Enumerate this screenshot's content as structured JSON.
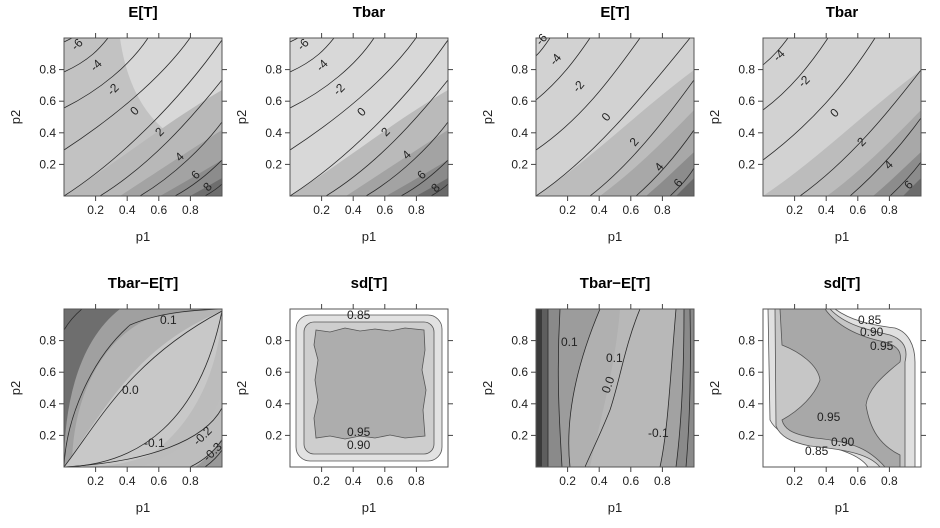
{
  "chart_data": [
    {
      "type": "contour",
      "title": "E[T]",
      "xlabel": "p1",
      "ylabel": "p2",
      "xlim": [
        0,
        1
      ],
      "ylim": [
        0,
        1
      ],
      "xticks": [
        "0.2",
        "0.4",
        "0.6",
        "0.8"
      ],
      "yticks": [
        "0.2",
        "0.4",
        "0.6",
        "0.8"
      ],
      "contour_levels": [
        "-6",
        "-4",
        "-2",
        "0",
        "2",
        "4",
        "6",
        "8"
      ]
    },
    {
      "type": "contour",
      "title": "Tbar",
      "xlabel": "p1",
      "ylabel": "p2",
      "xlim": [
        0,
        1
      ],
      "ylim": [
        0,
        1
      ],
      "xticks": [
        "0.2",
        "0.4",
        "0.6",
        "0.8"
      ],
      "yticks": [
        "0.2",
        "0.4",
        "0.6",
        "0.8"
      ],
      "contour_levels": [
        "-6",
        "-4",
        "-2",
        "0",
        "2",
        "4",
        "6",
        "8"
      ]
    },
    {
      "type": "contour",
      "title": "E[T]",
      "xlabel": "p1",
      "ylabel": "p2",
      "xlim": [
        0,
        1
      ],
      "ylim": [
        0,
        1
      ],
      "xticks": [
        "0.2",
        "0.4",
        "0.6",
        "0.8"
      ],
      "yticks": [
        "0.2",
        "0.4",
        "0.6",
        "0.8"
      ],
      "contour_levels": [
        "-6",
        "-4",
        "-2",
        "0",
        "2",
        "4",
        "6"
      ]
    },
    {
      "type": "contour",
      "title": "Tbar",
      "xlabel": "p1",
      "ylabel": "p2",
      "xlim": [
        0,
        1
      ],
      "ylim": [
        0,
        1
      ],
      "xticks": [
        "0.2",
        "0.4",
        "0.6",
        "0.8"
      ],
      "yticks": [
        "0.2",
        "0.4",
        "0.6",
        "0.8"
      ],
      "contour_levels": [
        "-4",
        "-2",
        "0",
        "2",
        "4",
        "6"
      ]
    },
    {
      "type": "contour",
      "title": "Tbar−E[T]",
      "xlabel": "p1",
      "ylabel": "p2",
      "xlim": [
        0,
        1
      ],
      "ylim": [
        0,
        1
      ],
      "xticks": [
        "0.2",
        "0.4",
        "0.6",
        "0.8"
      ],
      "yticks": [
        "0.2",
        "0.4",
        "0.6",
        "0.8"
      ],
      "contour_levels": [
        "0.1",
        "0.0",
        "-0.1",
        "-0.2",
        "-0.3"
      ]
    },
    {
      "type": "contour",
      "title": "sd[T]",
      "xlabel": "p1",
      "ylabel": "p2",
      "xlim": [
        0,
        1
      ],
      "ylim": [
        0,
        1
      ],
      "xticks": [
        "0.2",
        "0.4",
        "0.6",
        "0.8"
      ],
      "yticks": [
        "0.2",
        "0.4",
        "0.6",
        "0.8"
      ],
      "contour_levels": [
        "0.85",
        "0.90",
        "0.95"
      ]
    },
    {
      "type": "contour",
      "title": "Tbar−E[T]",
      "xlabel": "p1",
      "ylabel": "p2",
      "xlim": [
        0,
        1
      ],
      "ylim": [
        0,
        1
      ],
      "xticks": [
        "0.2",
        "0.4",
        "0.6",
        "0.8"
      ],
      "yticks": [
        "0.2",
        "0.4",
        "0.6",
        "0.8"
      ],
      "contour_levels": [
        "0.1",
        "0.0",
        "-0.1"
      ]
    },
    {
      "type": "contour",
      "title": "sd[T]",
      "xlabel": "p1",
      "ylabel": "p2",
      "xlim": [
        0,
        1
      ],
      "ylim": [
        0,
        1
      ],
      "xticks": [
        "0.2",
        "0.4",
        "0.6",
        "0.8"
      ],
      "yticks": [
        "0.2",
        "0.4",
        "0.6",
        "0.8"
      ],
      "contour_levels": [
        "0.85",
        "0.90",
        "0.95"
      ]
    }
  ],
  "colors": {
    "frame": "#555555",
    "contour_line": "#2a2a2a",
    "shade_light": "#dcdcdc",
    "shade_mid": "#b4b4b4",
    "shade_dark": "#5a5a5a",
    "white": "#ffffff"
  }
}
